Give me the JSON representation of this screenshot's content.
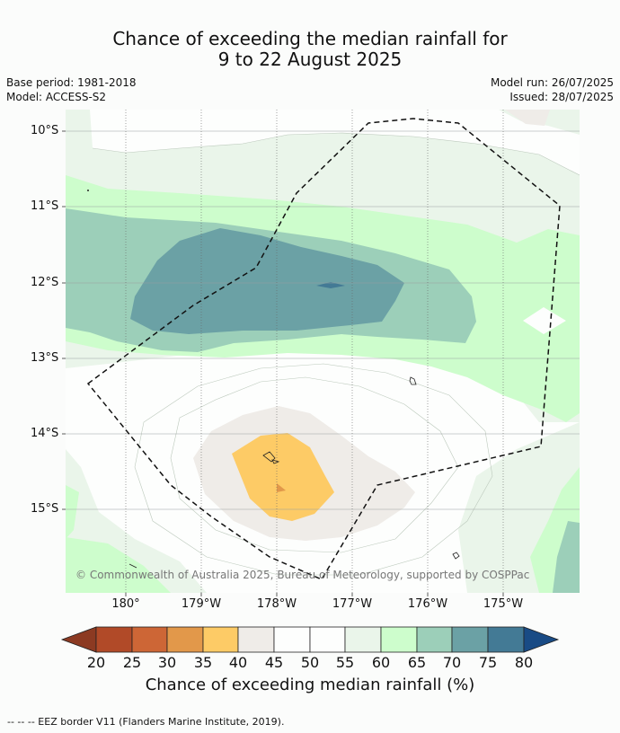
{
  "title": {
    "line1": "Chance of exceeding the median rainfall for",
    "line2": "9 to 22 August 2025"
  },
  "meta": {
    "base_period": "Base period: 1981-2018",
    "model": "Model: ACCESS-S2",
    "model_run": "Model run: 26/07/2025",
    "issued": "Issued: 28/07/2025"
  },
  "map": {
    "lat_labels": [
      "10°S",
      "11°S",
      "12°S",
      "13°S",
      "14°S",
      "15°S"
    ],
    "lon_labels": [
      "180°",
      "179°W",
      "178°W",
      "177°W",
      "176°W",
      "175°W"
    ],
    "copyright": "© Commonwealth of Australia 2025, Bureau of Meteorology, supported by COSPPac"
  },
  "colorbar": {
    "title": "Chance of exceeding median rainfall (%)",
    "ticks": [
      "20",
      "25",
      "30",
      "35",
      "40",
      "45",
      "50",
      "55",
      "60",
      "65",
      "70",
      "75",
      "80"
    ],
    "colors": {
      "under20": "#8c3a22",
      "c20_25": "#b14a28",
      "c25_30": "#cd6636",
      "c30_35": "#e2984a",
      "c35_40": "#fdcb66",
      "c40_45": "#efece8",
      "c45_50": "#fdfefd",
      "c50_55": "#fdfefd",
      "c55_60": "#eaf5ea",
      "c60_65": "#cdfdcc",
      "c65_70": "#9ccfb9",
      "c70_75": "#6ba1a5",
      "c75_80": "#437a95",
      "over80": "#194b85"
    }
  },
  "legend": {
    "footnote": "--  --  -- EEZ border V11 (Flanders Marine Institute, 2019)."
  }
}
